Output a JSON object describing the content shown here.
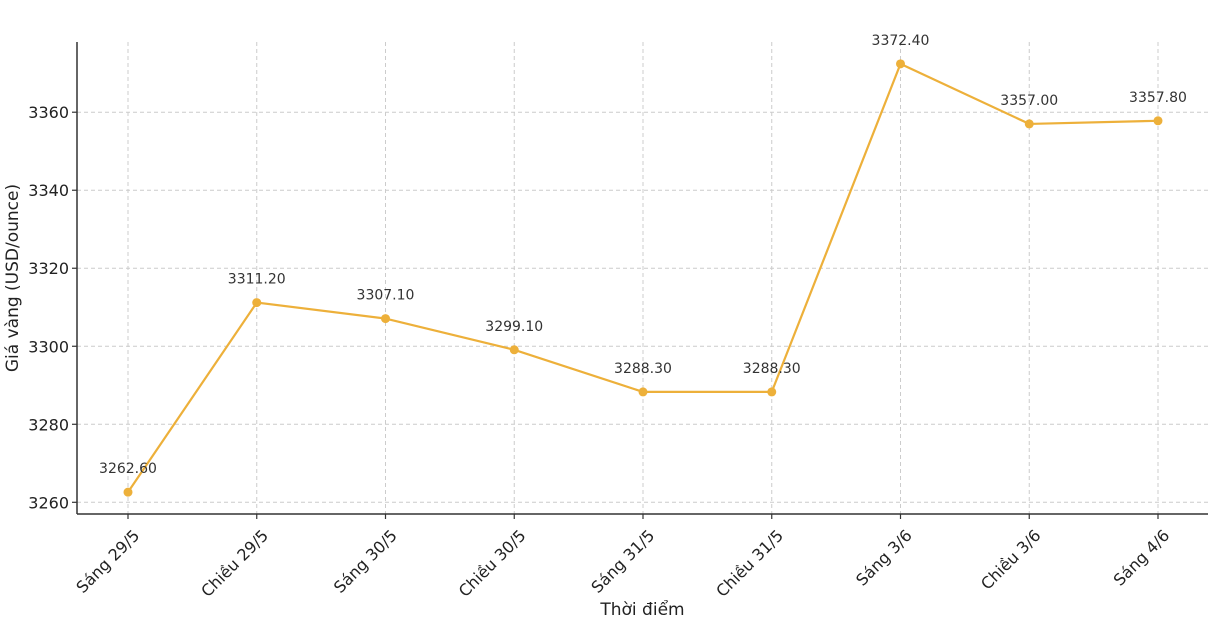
{
  "chart_data": {
    "type": "line",
    "title": "",
    "xlabel": "Thời điểm",
    "ylabel": "Giá vàng (USD/ounce)",
    "categories": [
      "Sáng 29/5",
      "Chiều 29/5",
      "Sáng 30/5",
      "Chiều 30/5",
      "Sáng 31/5",
      "Chiều 31/5",
      "Sáng 3/6",
      "Chiều 3/6",
      "Sáng 4/6"
    ],
    "series": [
      {
        "values": [
          3262.6,
          3311.2,
          3307.1,
          3299.1,
          3288.3,
          3288.3,
          3372.4,
          3357.0,
          3357.8
        ],
        "color": "#EDB03A"
      }
    ],
    "data_labels": [
      "3262.60",
      "3311.20",
      "3307.10",
      "3299.10",
      "3288.30",
      "3288.30",
      "3372.40",
      "3357.00",
      "3357.80"
    ],
    "yticks": [
      3260,
      3280,
      3300,
      3320,
      3340,
      3360
    ],
    "ylim": [
      3257,
      3378
    ],
    "grid": true,
    "legend": "none"
  }
}
